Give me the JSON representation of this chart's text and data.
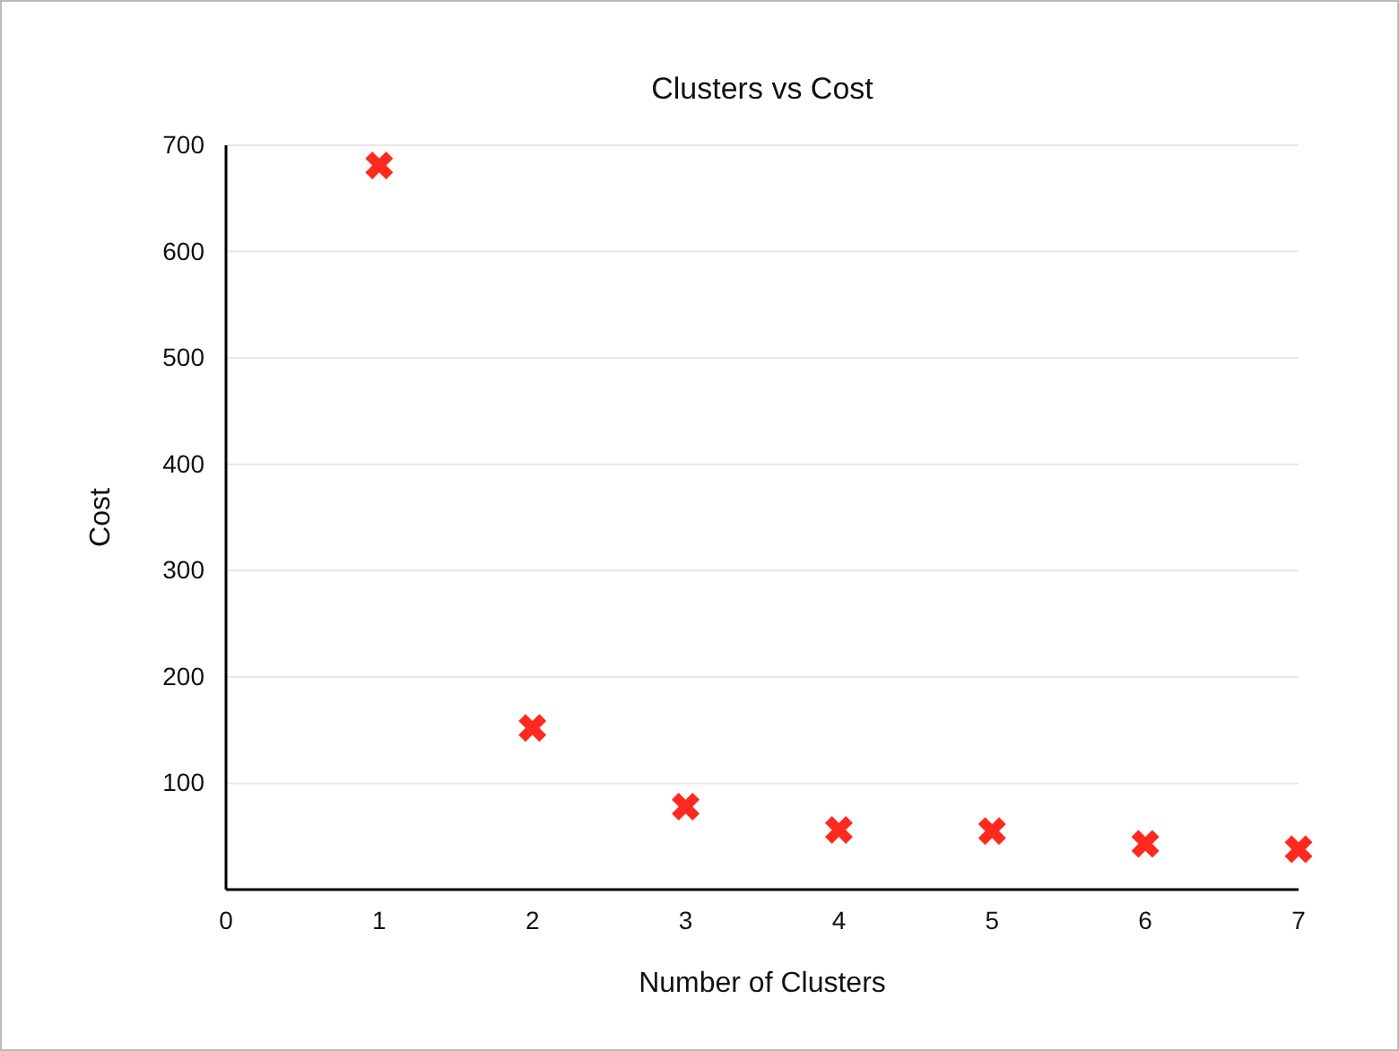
{
  "chart_data": {
    "type": "scatter",
    "title": "Clusters vs Cost",
    "xlabel": "Number of Clusters",
    "ylabel": "Cost",
    "x": [
      1,
      2,
      3,
      4,
      5,
      6,
      7
    ],
    "series": [
      {
        "color": "#ff2a1f",
        "values": [
          681,
          152,
          78,
          56,
          55,
          43,
          38
        ]
      }
    ],
    "xlim": [
      0,
      7
    ],
    "xticks": [
      0,
      1,
      2,
      3,
      4,
      5,
      6,
      7
    ],
    "ylim": [
      0,
      700
    ],
    "yticks": [
      100,
      200,
      300,
      400,
      500,
      600,
      700
    ],
    "grid": "y",
    "marker": "cross"
  }
}
